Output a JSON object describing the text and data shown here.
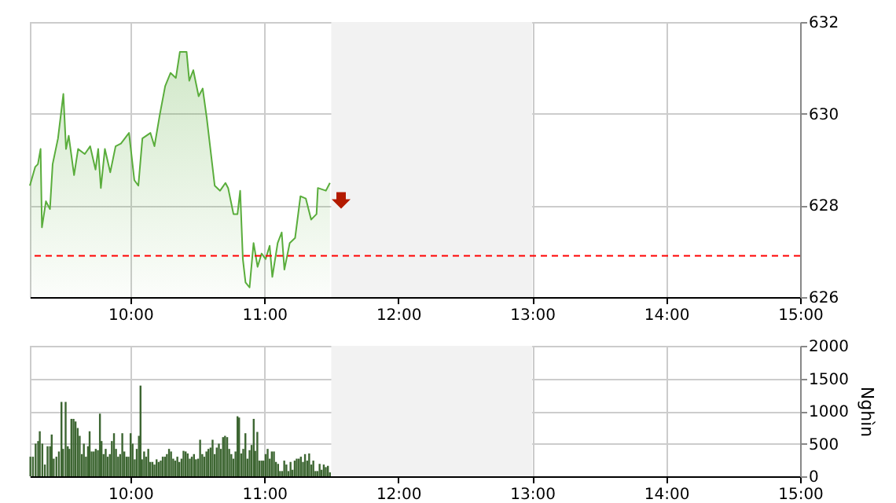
{
  "chart_data": [
    {
      "type": "area",
      "x": [
        9.25,
        9.29,
        9.31,
        9.33,
        9.34,
        9.37,
        9.4,
        9.42,
        9.46,
        9.5,
        9.52,
        9.54,
        9.58,
        9.61,
        9.66,
        9.7,
        9.74,
        9.76,
        9.78,
        9.81,
        9.85,
        9.89,
        9.93,
        9.99,
        10.03,
        10.06,
        10.09,
        10.15,
        10.18,
        10.22,
        10.26,
        10.3,
        10.34,
        10.37,
        10.42,
        10.44,
        10.47,
        10.51,
        10.54,
        10.57,
        10.63,
        10.67,
        10.71,
        10.73,
        10.77,
        10.8,
        10.82,
        10.84,
        10.86,
        10.89,
        10.92,
        10.95,
        10.98,
        11.01,
        11.04,
        11.06,
        11.1,
        11.13,
        11.15,
        11.19,
        11.23,
        11.27,
        11.31,
        11.35,
        11.39,
        11.4,
        11.46,
        11.49
      ],
      "series": [
        {
          "color": "#5aad3c",
          "values": [
            628.43,
            628.84,
            628.9,
            629.23,
            627.52,
            628.09,
            627.92,
            628.9,
            629.46,
            630.43,
            629.23,
            629.52,
            628.66,
            629.23,
            629.12,
            629.29,
            628.78,
            629.23,
            628.38,
            629.23,
            628.72,
            629.29,
            629.35,
            629.58,
            628.55,
            628.43,
            629.46,
            629.58,
            629.29,
            629.98,
            630.6,
            630.89,
            630.78,
            631.35,
            631.35,
            630.72,
            630.95,
            630.38,
            630.55,
            629.92,
            628.43,
            628.32,
            628.49,
            628.38,
            627.81,
            627.81,
            628.32,
            626.83,
            626.32,
            626.21,
            627.18,
            626.66,
            626.95,
            626.83,
            627.12,
            626.44,
            627.18,
            627.41,
            626.6,
            627.18,
            627.29,
            628.2,
            628.15,
            627.69,
            627.81,
            628.38,
            628.32,
            628.49
          ]
        }
      ],
      "xlim": [
        9.25,
        15
      ],
      "xticks": [
        {
          "value": 10,
          "label": "10:00"
        },
        {
          "value": 11,
          "label": "11:00"
        },
        {
          "value": 12,
          "label": "12:00"
        },
        {
          "value": 13,
          "label": "13:00"
        },
        {
          "value": 14,
          "label": "14:00"
        },
        {
          "value": 15,
          "label": "15:00"
        }
      ],
      "ylim": [
        626,
        632
      ],
      "yticks": [
        626,
        628,
        630,
        632
      ],
      "grid": true,
      "ref_lines": [
        {
          "axis": "y",
          "value": 626.9,
          "color": "#ff0000",
          "line_style": "dashed"
        }
      ],
      "bands": [
        {
          "axis": "x",
          "from": 11.5,
          "to": 13,
          "color": "#f2f2f2"
        }
      ]
    },
    {
      "type": "bar",
      "ylabel": "Nghìn",
      "x": [
        9.254,
        9.273,
        9.293,
        9.312,
        9.324,
        9.343,
        9.362,
        9.382,
        9.401,
        9.413,
        9.428,
        9.448,
        9.467,
        9.486,
        9.498,
        9.517,
        9.533,
        9.545,
        9.56,
        9.576,
        9.591,
        9.607,
        9.622,
        9.638,
        9.653,
        9.669,
        9.684,
        9.696,
        9.711,
        9.727,
        9.742,
        9.758,
        9.773,
        9.785,
        9.8,
        9.816,
        9.831,
        9.847,
        9.862,
        9.878,
        9.893,
        9.909,
        9.924,
        9.94,
        9.955,
        9.971,
        9.986,
        10.002,
        10.017,
        10.033,
        10.048,
        10.064,
        10.076,
        10.087,
        10.103,
        10.118,
        10.134,
        10.149,
        10.165,
        10.18,
        10.196,
        10.211,
        10.227,
        10.242,
        10.258,
        10.273,
        10.289,
        10.304,
        10.32,
        10.335,
        10.351,
        10.366,
        10.382,
        10.397,
        10.413,
        10.428,
        10.444,
        10.459,
        10.475,
        10.49,
        10.506,
        10.521,
        10.537,
        10.552,
        10.568,
        10.583,
        10.599,
        10.614,
        10.63,
        10.645,
        10.661,
        10.676,
        10.692,
        10.707,
        10.723,
        10.738,
        10.754,
        10.769,
        10.785,
        10.8,
        10.812,
        10.828,
        10.843,
        10.859,
        10.874,
        10.89,
        10.905,
        10.921,
        10.932,
        10.948,
        10.963,
        10.979,
        10.994,
        11.01,
        11.025,
        11.041,
        11.056,
        11.072,
        11.087,
        11.103,
        11.118,
        11.134,
        11.149,
        11.165,
        11.18,
        11.196,
        11.211,
        11.227,
        11.242,
        11.258,
        11.273,
        11.289,
        11.304,
        11.32,
        11.335,
        11.351,
        11.366,
        11.382,
        11.397,
        11.413,
        11.428,
        11.444,
        11.459,
        11.475,
        11.49
      ],
      "series": [
        {
          "color": "#3d6632",
          "values": [
            300,
            300,
            500,
            540,
            690,
            500,
            180,
            460,
            460,
            640,
            270,
            300,
            380,
            1140,
            420,
            1140,
            460,
            420,
            880,
            880,
            840,
            740,
            620,
            340,
            500,
            300,
            460,
            690,
            380,
            380,
            420,
            400,
            960,
            540,
            340,
            420,
            300,
            340,
            540,
            660,
            420,
            300,
            340,
            660,
            380,
            300,
            300,
            660,
            500,
            260,
            420,
            620,
            1390,
            260,
            380,
            300,
            420,
            220,
            220,
            180,
            260,
            220,
            240,
            300,
            300,
            340,
            420,
            380,
            270,
            240,
            300,
            220,
            270,
            390,
            380,
            350,
            270,
            300,
            340,
            260,
            270,
            560,
            340,
            300,
            380,
            420,
            440,
            560,
            340,
            440,
            500,
            420,
            600,
            620,
            600,
            420,
            340,
            270,
            380,
            920,
            900,
            350,
            420,
            660,
            270,
            400,
            480,
            880,
            390,
            680,
            240,
            240,
            240,
            340,
            420,
            270,
            380,
            380,
            220,
            190,
            80,
            80,
            240,
            180,
            80,
            220,
            100,
            240,
            270,
            270,
            300,
            220,
            340,
            240,
            350,
            180,
            240,
            80,
            80,
            190,
            100,
            180,
            140,
            160,
            60
          ]
        }
      ],
      "xlim": [
        9.25,
        15
      ],
      "xticks": [
        {
          "value": 10,
          "label": "10:00"
        },
        {
          "value": 11,
          "label": "11:00"
        },
        {
          "value": 12,
          "label": "12:00"
        },
        {
          "value": 13,
          "label": "13:00"
        },
        {
          "value": 14,
          "label": "14:00"
        },
        {
          "value": 15,
          "label": "15:00"
        }
      ],
      "ylim": [
        0,
        2000
      ],
      "yticks": [
        0,
        500,
        1000,
        1500,
        2000
      ],
      "grid": true,
      "bands": [
        {
          "axis": "x",
          "from": 11.5,
          "to": 13,
          "color": "#f2f2f2"
        }
      ]
    }
  ]
}
